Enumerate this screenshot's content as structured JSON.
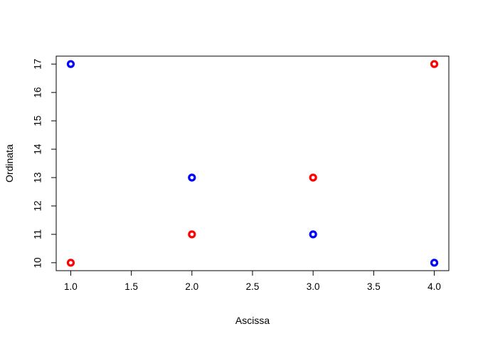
{
  "chart_data": {
    "type": "scatter",
    "title": "",
    "xlabel": "Ascissa",
    "ylabel": "Ordinata",
    "xlim": [
      0.88,
      4.12
    ],
    "ylim": [
      9.72,
      17.28
    ],
    "x_ticks": [
      "1.0",
      "1.5",
      "2.0",
      "2.5",
      "3.0",
      "3.5",
      "4.0"
    ],
    "y_ticks": [
      "10",
      "11",
      "12",
      "13",
      "14",
      "15",
      "16",
      "17"
    ],
    "grid": false,
    "legend": "none",
    "series": [
      {
        "color": "#ff0000",
        "x": [
          1,
          2,
          3,
          4
        ],
        "y": [
          10,
          11,
          13,
          17
        ]
      },
      {
        "color": "#0000ff",
        "x": [
          1,
          2,
          3,
          4
        ],
        "y": [
          17,
          13,
          11,
          10
        ]
      }
    ]
  }
}
